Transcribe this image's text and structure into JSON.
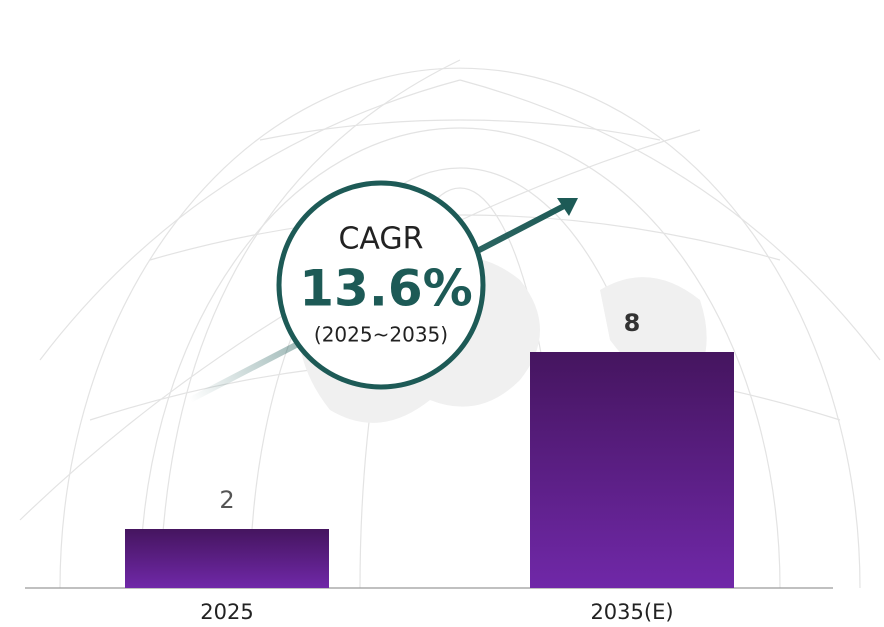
{
  "chart_data": {
    "type": "bar",
    "categories": [
      "2025",
      "2035(E)"
    ],
    "values": [
      2,
      8
    ],
    "colors": [
      "#45155f",
      "#7028a8"
    ],
    "annotation": {
      "title": "CAGR",
      "value": "13.6%",
      "period": "(2025~2035)"
    }
  }
}
